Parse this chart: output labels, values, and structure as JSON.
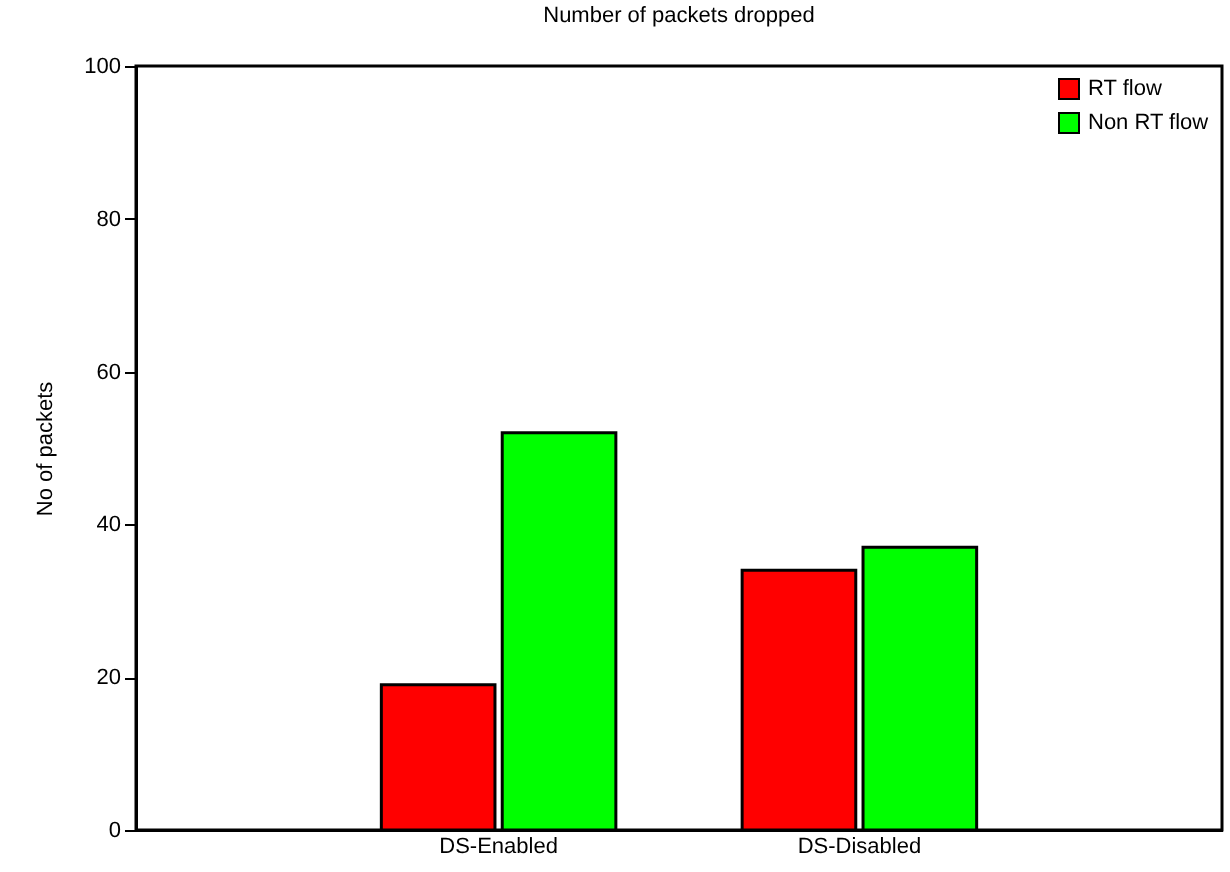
{
  "chart_data": {
    "type": "bar",
    "title": "Number of packets dropped",
    "ylabel": "No of packets",
    "categories": [
      "DS-Enabled",
      "DS-Disabled"
    ],
    "series": [
      {
        "name": "RT flow",
        "color": "#ff0000",
        "values": [
          19,
          34
        ]
      },
      {
        "name": "Non RT flow",
        "color": "#00ff00",
        "values": [
          52,
          37
        ]
      }
    ],
    "ylim": [
      0,
      100
    ],
    "yticks": [
      0,
      20,
      40,
      60,
      80,
      100
    ],
    "grid": false,
    "legend": "top right"
  }
}
